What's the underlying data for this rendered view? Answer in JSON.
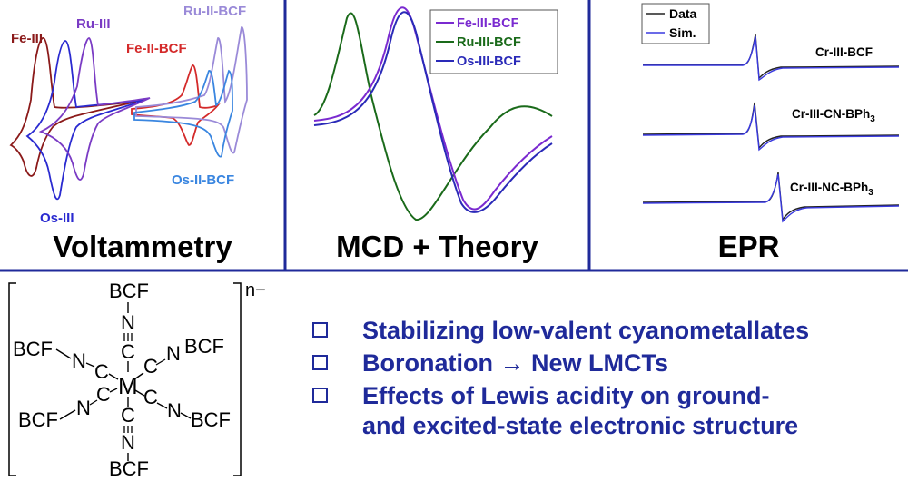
{
  "titles": {
    "voltammetry": "Voltammetry",
    "mcd": "MCD + Theory",
    "epr": "EPR"
  },
  "volt_labels": {
    "fe3": "Fe-III",
    "ru3": "Ru-III",
    "fe2": "Fe-II-BCF",
    "ru2": "Ru-II-BCF",
    "os2": "Os-II-BCF",
    "os3": "Os-III"
  },
  "mcd_legend": [
    "Fe-III-BCF",
    "Ru-III-BCF",
    "Os-III-BCF"
  ],
  "epr_legend": [
    "Data",
    "Sim."
  ],
  "epr_labels": {
    "bcf": "Cr-III-BCF",
    "cn_main": "Cr-III-CN-BPh",
    "cn_sub": "3",
    "nc_main": "Cr-III-NC-BPh",
    "nc_sub": "3"
  },
  "structure": {
    "charge": "n−",
    "bcf": "BCF",
    "n": "N",
    "c": "C",
    "m": "M"
  },
  "bullets": [
    "Stabilizing low-valent cyanometallates",
    "Boronation → New LMCTs",
    "Effects of Lewis acidity on ground-\nand excited-state electronic structure"
  ],
  "colors": {
    "navy": "#1f2a9a",
    "fe": "#8b1a1a",
    "ru": "#7a3bc4",
    "feBCF": "#d42a2a",
    "ruBCF": "#9a8ad8",
    "osBCF": "#3a86e0",
    "os": "#2a2ad0",
    "mcdFe": "#7a2ad0",
    "mcdRu": "#1a6a1a",
    "mcdOs": "#2a2ab8"
  }
}
